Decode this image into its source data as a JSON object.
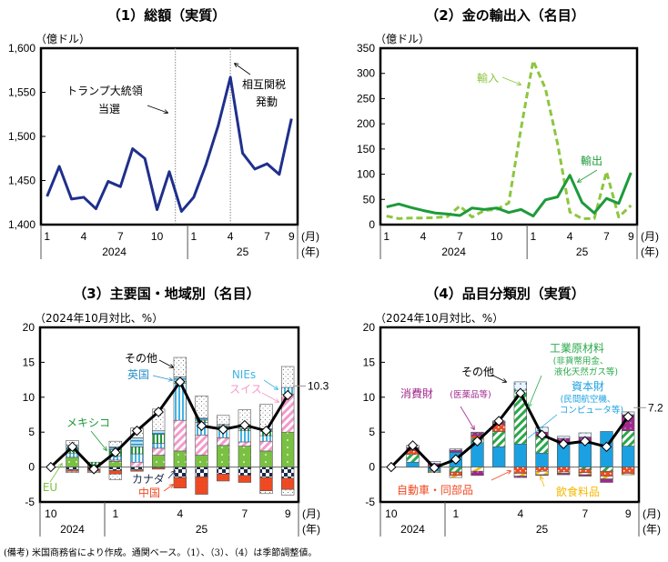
{
  "colors": {
    "navy": "#1f2f8c",
    "export_green": "#1e9a3a",
    "import_green": "#8cc63f",
    "eu": "#7ac143",
    "swiss": "#f29acb",
    "nies": "#40b4e5",
    "mexico": "#1e9a3a",
    "uk": "#2b8fc9",
    "other": "#f0f0f0",
    "canada": "#1a2a4a",
    "china": "#f04a23",
    "capital": "#1ba1e2",
    "industrial": "#2aa84a",
    "consumer": "#a0288c",
    "auto": "#f04a23",
    "food": "#f5b800",
    "other4": "#e8f4ff"
  },
  "footer": "(備考) 米国商務省により作成。通関ベース。（1）、（3）、（4）は季節調整値。",
  "chart_data": [
    {
      "id": "total",
      "type": "line",
      "title": "（1）総額（実質）",
      "ylabel": "（億ドル）",
      "ylim": [
        1400,
        1600
      ],
      "yticks": [
        "1,400",
        "1,450",
        "1,500",
        "1,550",
        "1,600"
      ],
      "ytick_values": [
        1400,
        1450,
        1500,
        1550,
        1600
      ],
      "x_month_labels": [
        "1",
        "4",
        "7",
        "10",
        "1",
        "4",
        "7",
        "9"
      ],
      "x_month_index": [
        0,
        3,
        6,
        9,
        12,
        15,
        18,
        20
      ],
      "x_year_labels": [
        "2024",
        "25"
      ],
      "x_unit_month": "(月)",
      "x_unit_year": "(年)",
      "x": [
        "2024-01",
        "2024-02",
        "2024-03",
        "2024-04",
        "2024-05",
        "2024-06",
        "2024-07",
        "2024-08",
        "2024-09",
        "2024-10",
        "2024-11",
        "2024-12",
        "2025-01",
        "2025-02",
        "2025-03",
        "2025-04",
        "2025-05",
        "2025-06",
        "2025-07",
        "2025-08",
        "2025-09"
      ],
      "series": [
        {
          "name": "総額",
          "values": [
            1432,
            1466,
            1429,
            1431,
            1418,
            1449,
            1443,
            1486,
            1475,
            1417,
            1460,
            1415,
            1431,
            1468,
            1512,
            1567,
            1481,
            1463,
            1469,
            1457,
            1520
          ]
        }
      ],
      "vlines": [
        {
          "index": 10.5
        },
        {
          "index": 15
        }
      ],
      "annotations": [
        {
          "text_lines": [
            "トランプ大統領",
            "当選"
          ]
        },
        {
          "text_lines": [
            "相互関税",
            "発動"
          ]
        }
      ]
    },
    {
      "id": "gold",
      "type": "line",
      "title": "（2）金の輸出入（名目）",
      "ylabel": "（億ドル）",
      "ylim": [
        0,
        350
      ],
      "yticks": [
        "0",
        "50",
        "100",
        "150",
        "200",
        "250",
        "300",
        "350"
      ],
      "ytick_values": [
        0,
        50,
        100,
        150,
        200,
        250,
        300,
        350
      ],
      "x_month_labels": [
        "1",
        "4",
        "7",
        "10",
        "1",
        "4",
        "7",
        "9"
      ],
      "x_month_index": [
        0,
        3,
        6,
        9,
        12,
        15,
        18,
        20
      ],
      "x_year_labels": [
        "2024",
        "25"
      ],
      "x_unit_month": "(月)",
      "x_unit_year": "(年)",
      "x": [
        "2024-01",
        "2024-02",
        "2024-03",
        "2024-04",
        "2024-05",
        "2024-06",
        "2024-07",
        "2024-08",
        "2024-09",
        "2024-10",
        "2024-11",
        "2024-12",
        "2025-01",
        "2025-02",
        "2025-03",
        "2025-04",
        "2025-05",
        "2025-06",
        "2025-07",
        "2025-08",
        "2025-09"
      ],
      "series": [
        {
          "name": "輸入",
          "style": "dashed",
          "values": [
            17,
            12,
            13,
            13,
            14,
            16,
            37,
            15,
            28,
            30,
            43,
            190,
            325,
            270,
            160,
            25,
            12,
            12,
            105,
            15,
            38
          ]
        },
        {
          "name": "輸出",
          "style": "solid",
          "values": [
            35,
            41,
            34,
            28,
            23,
            21,
            18,
            33,
            30,
            33,
            24,
            30,
            17,
            49,
            55,
            98,
            44,
            23,
            52,
            42,
            103
          ]
        }
      ],
      "labels": [
        "輸入",
        "輸出"
      ]
    },
    {
      "id": "region",
      "type": "bar",
      "stacked": true,
      "title": "（3）主要国・地域別（名目）",
      "ylabel": "（2024年10月対比、%）",
      "ylim": [
        -5,
        20
      ],
      "yticks": [
        "-5",
        "0",
        "5",
        "10",
        "15",
        "20"
      ],
      "ytick_values": [
        -5,
        0,
        5,
        10,
        15,
        20
      ],
      "categories": [
        "2024-10",
        "2024-11",
        "2024-12",
        "2025-01",
        "2025-02",
        "2025-03",
        "2025-04",
        "2025-05",
        "2025-06",
        "2025-07",
        "2025-08",
        "2025-09"
      ],
      "x_month_labels": [
        "10",
        "1",
        "4",
        "7",
        "9"
      ],
      "x_month_index": [
        0,
        3,
        6,
        9,
        11
      ],
      "x_year_labels": [
        "2024",
        "25"
      ],
      "x_unit_month": "(月)",
      "x_unit_year": "(年)",
      "series": [
        {
          "name": "EU",
          "key": "eu",
          "values": [
            0,
            1.4,
            0.2,
            0.8,
            0.0,
            1.7,
            2.3,
            1.7,
            3.1,
            3.0,
            2.3,
            5.0
          ]
        },
        {
          "name": "スイス",
          "key": "swiss",
          "values": [
            0,
            0.0,
            0.0,
            0.2,
            0.7,
            1.0,
            4.4,
            2.9,
            1.1,
            0.6,
            1.4,
            5.4
          ]
        },
        {
          "name": "NIEs",
          "key": "nies",
          "values": [
            0,
            0.6,
            0.0,
            0.6,
            1.2,
            0.7,
            5.3,
            1.8,
            1.4,
            1.6,
            0.8,
            1.0
          ]
        },
        {
          "name": "メキシコ",
          "key": "mexico",
          "values": [
            0,
            0.6,
            0.5,
            0.9,
            1.0,
            1.3,
            0.3,
            0.3,
            0.3,
            0.3,
            0.6,
            0.0
          ]
        },
        {
          "name": "英国",
          "key": "uk",
          "values": [
            0,
            0.5,
            0.0,
            0.4,
            1.3,
            0.5,
            0.6,
            0.3,
            0.2,
            0.6,
            0.4,
            0.0
          ]
        },
        {
          "name": "その他",
          "key": "other",
          "values": [
            0,
            0.7,
            0.0,
            0.8,
            1.4,
            3.1,
            2.8,
            3.2,
            1.3,
            2.1,
            3.5,
            3.0
          ]
        },
        {
          "name": "カナダ",
          "key": "canada",
          "values": [
            0,
            -0.4,
            -0.3,
            -0.5,
            -0.4,
            -0.1,
            -1.5,
            -1.4,
            -1.0,
            -1.2,
            -1.5,
            -1.6
          ]
        },
        {
          "name": "中国",
          "key": "china",
          "values": [
            0,
            -0.2,
            -0.3,
            -0.5,
            -0.2,
            -0.2,
            -1.5,
            -2.5,
            -1.0,
            -1.0,
            -1.9,
            -1.6
          ]
        },
        {
          "name": "その他(負)",
          "key": "other",
          "values": [
            0,
            -0.2,
            -0.2,
            -0.8,
            0,
            0,
            0,
            0,
            0,
            0,
            -0.4,
            -0.8
          ]
        }
      ],
      "line": {
        "name": "合計",
        "values": [
          0,
          2.9,
          -0.3,
          2.1,
          5.2,
          7.9,
          12.2,
          5.9,
          5.4,
          6.0,
          5.2,
          10.3
        ]
      },
      "end_label": "10.3",
      "labels": [
        "その他",
        "英国",
        "NIEs",
        "スイス",
        "メキシコ",
        "EU",
        "カナダ",
        "中国"
      ]
    },
    {
      "id": "goods",
      "type": "bar",
      "stacked": true,
      "title": "（4）品目分類別（実質）",
      "ylabel": "（2024年10月対比、%）",
      "ylim": [
        -5,
        20
      ],
      "yticks": [
        "-5",
        "0",
        "5",
        "10",
        "15",
        "20"
      ],
      "ytick_values": [
        -5,
        0,
        5,
        10,
        15,
        20
      ],
      "categories": [
        "2024-10",
        "2024-11",
        "2024-12",
        "2025-01",
        "2025-02",
        "2025-03",
        "2025-04",
        "2025-05",
        "2025-06",
        "2025-07",
        "2025-08",
        "2025-09"
      ],
      "x_month_labels": [
        "10",
        "1",
        "4",
        "7",
        "9"
      ],
      "x_month_index": [
        0,
        3,
        6,
        9,
        11
      ],
      "x_year_labels": [
        "2024",
        "25"
      ],
      "x_unit_month": "(月)",
      "x_unit_year": "(年)",
      "series": [
        {
          "name": "資本財",
          "key": "capital",
          "values": [
            0,
            0.7,
            0.0,
            2.1,
            3.5,
            2.9,
            3.3,
            2.0,
            3.3,
            3.4,
            5.1,
            3.0
          ]
        },
        {
          "name": "工業原材料",
          "key": "industrial",
          "values": [
            0,
            1.1,
            0.0,
            0.0,
            0.6,
            2.2,
            7.7,
            2.4,
            0.0,
            0.0,
            0.0,
            2.2
          ]
        },
        {
          "name": "自動車・同部品",
          "key": "auto",
          "values": [
            0,
            0.6,
            0.2,
            0.0,
            0.4,
            1.0,
            0,
            0,
            0,
            0,
            0,
            0
          ]
        },
        {
          "name": "消費財",
          "key": "consumer",
          "values": [
            0,
            0.4,
            0.3,
            0.3,
            0.4,
            0.3,
            0.0,
            0.6,
            0.8,
            0.9,
            0.0,
            2.3
          ]
        },
        {
          "name": "その他",
          "key": "other4",
          "values": [
            0,
            0.3,
            0.3,
            0.2,
            0.1,
            0.2,
            1.2,
            0.7,
            0.3,
            0.6,
            0.0,
            0.4
          ]
        },
        {
          "name": "資本財(負)",
          "key": "capital",
          "values": [
            0,
            0,
            -0.6,
            0,
            0,
            0,
            0,
            0,
            0,
            0,
            0,
            0
          ]
        },
        {
          "name": "工業原材料(負)",
          "key": "industrial",
          "values": [
            0,
            0,
            0,
            -0.7,
            0,
            0,
            0,
            0,
            0,
            -0.3,
            -0.6,
            0
          ]
        },
        {
          "name": "自動車・同部品(負)",
          "key": "auto",
          "values": [
            0,
            0,
            0,
            -0.5,
            0,
            0,
            -0.9,
            -0.6,
            -0.7,
            -0.5,
            -0.7,
            -0.9
          ]
        },
        {
          "name": "飲食料品",
          "key": "food",
          "values": [
            0,
            0,
            -0.2,
            -0.3,
            -0.6,
            0,
            -0.4,
            -0.5,
            -0.2,
            -0.3,
            -0.4,
            -0.2
          ]
        },
        {
          "name": "消費財(負)",
          "key": "consumer",
          "values": [
            0,
            0,
            0,
            0,
            -0.6,
            0,
            -0.2,
            -0.1,
            -0.2,
            -0.2,
            -0.5,
            0
          ]
        }
      ],
      "line": {
        "name": "合計",
        "values": [
          0,
          3.1,
          -0.1,
          1.1,
          3.7,
          6.6,
          10.6,
          4.6,
          3.3,
          3.7,
          2.9,
          7.2
        ]
      },
      "end_label": "7.2",
      "labels": [
        "その他",
        "工業原材料",
        "(非貨幣用金、",
        "液化天然ガス等)",
        "消費財",
        "(医薬品等)",
        "資本財",
        "(民間航空機、",
        "コンピュータ等)",
        "自動車・同部品",
        "飲食料品"
      ]
    }
  ]
}
